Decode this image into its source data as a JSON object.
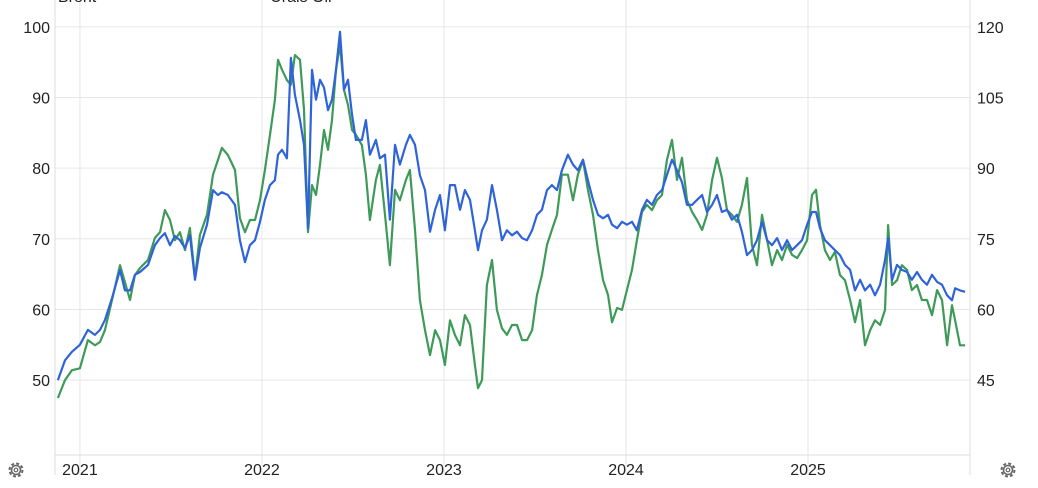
{
  "chart_data": {
    "type": "line",
    "x": [
      2020.879,
      2020.918,
      2020.956,
      2021.0,
      2021.044,
      2021.082,
      2021.11,
      2021.137,
      2021.176,
      2021.22,
      2021.247,
      2021.275,
      2021.302,
      2021.33,
      2021.374,
      2021.412,
      2021.44,
      2021.467,
      2021.495,
      2021.522,
      2021.549,
      2021.577,
      2021.604,
      2021.632,
      2021.659,
      2021.698,
      2021.731,
      2021.758,
      2021.78,
      2021.813,
      2021.852,
      2021.879,
      2021.907,
      2021.934,
      2021.962,
      2021.989,
      2022.016,
      2022.044,
      2022.071,
      2022.088,
      2022.11,
      2022.137,
      2022.159,
      2022.181,
      2022.209,
      2022.231,
      2022.253,
      2022.275,
      2022.297,
      2022.319,
      2022.341,
      2022.363,
      2022.385,
      2022.407,
      2022.429,
      2022.451,
      2022.473,
      2022.495,
      2022.516,
      2022.549,
      2022.571,
      2022.593,
      2022.626,
      2022.648,
      2022.676,
      2022.703,
      2022.731,
      2022.758,
      2022.791,
      2022.813,
      2022.841,
      2022.868,
      2022.896,
      2022.923,
      2022.951,
      2022.978,
      2023.005,
      2023.033,
      2023.06,
      2023.088,
      2023.115,
      2023.143,
      2023.17,
      2023.187,
      2023.209,
      2023.236,
      2023.264,
      2023.291,
      2023.319,
      2023.346,
      2023.374,
      2023.401,
      2023.429,
      2023.456,
      2023.484,
      2023.511,
      2023.538,
      2023.566,
      2023.593,
      2023.621,
      2023.648,
      2023.681,
      2023.709,
      2023.736,
      2023.764,
      2023.791,
      2023.819,
      2023.846,
      2023.874,
      2023.901,
      2023.923,
      2023.951,
      2023.978,
      2024.005,
      2024.033,
      2024.06,
      2024.088,
      2024.115,
      2024.143,
      2024.17,
      2024.198,
      2024.225,
      2024.253,
      2024.28,
      2024.308,
      2024.335,
      2024.363,
      2024.39,
      2024.418,
      2024.445,
      2024.473,
      2024.5,
      2024.527,
      2024.555,
      2024.582,
      2024.61,
      2024.637,
      2024.665,
      2024.692,
      2024.72,
      2024.747,
      2024.775,
      2024.802,
      2024.83,
      2024.857,
      2024.885,
      2024.912,
      2024.94,
      2024.967,
      2024.995,
      2025.022,
      2025.044,
      2025.066,
      2025.093,
      2025.121,
      2025.148,
      2025.176,
      2025.203,
      2025.231,
      2025.258,
      2025.286,
      2025.313,
      2025.341,
      2025.368,
      2025.396,
      2025.423,
      2025.44,
      2025.462,
      2025.489,
      2025.516,
      2025.544,
      2025.571,
      2025.599,
      2025.626,
      2025.654,
      2025.681,
      2025.709,
      2025.736,
      2025.764,
      2025.791,
      2025.808,
      2025.835,
      2025.863
    ],
    "series": [
      {
        "name": "Brent",
        "color": "#2f63d9",
        "axis": "y",
        "values": [
          50.0,
          52.8,
          54.0,
          55.0,
          57.1,
          56.4,
          57.1,
          58.5,
          61.6,
          65.6,
          62.7,
          62.7,
          64.9,
          65.3,
          66.3,
          69.1,
          70.1,
          70.8,
          69.1,
          70.4,
          69.8,
          68.7,
          70.5,
          64.2,
          68.7,
          72.0,
          76.9,
          76.2,
          76.6,
          76.2,
          74.8,
          69.8,
          66.7,
          69.1,
          69.8,
          72.4,
          75.5,
          77.6,
          78.3,
          81.9,
          82.6,
          81.4,
          95.6,
          90.4,
          86.8,
          83.3,
          71.5,
          93.9,
          89.7,
          92.5,
          91.4,
          88.2,
          89.7,
          93.9,
          99.3,
          91.1,
          92.5,
          87.5,
          84.0,
          84.0,
          86.8,
          81.9,
          84.0,
          81.4,
          81.9,
          72.7,
          83.3,
          80.5,
          83.3,
          84.7,
          83.3,
          79.0,
          76.9,
          71.0,
          74.1,
          76.2,
          71.2,
          77.6,
          77.6,
          74.1,
          76.9,
          75.5,
          71.2,
          68.4,
          71.2,
          72.7,
          77.6,
          74.1,
          69.8,
          71.2,
          70.5,
          71.0,
          70.1,
          69.8,
          71.2,
          73.4,
          74.1,
          76.9,
          77.6,
          76.9,
          79.7,
          81.9,
          80.5,
          79.7,
          81.2,
          78.3,
          75.5,
          73.4,
          72.9,
          73.4,
          72.0,
          71.5,
          72.4,
          72.0,
          72.4,
          71.2,
          74.1,
          75.5,
          74.8,
          76.2,
          76.9,
          79.0,
          81.2,
          79.7,
          78.0,
          74.8,
          74.8,
          75.5,
          76.2,
          73.8,
          74.8,
          76.2,
          73.8,
          74.1,
          72.7,
          73.4,
          71.0,
          67.7,
          68.4,
          69.8,
          72.4,
          69.8,
          69.1,
          70.1,
          68.4,
          69.8,
          68.4,
          69.1,
          69.8,
          72.0,
          73.8,
          73.8,
          71.5,
          69.8,
          69.1,
          68.4,
          67.7,
          66.3,
          65.6,
          62.7,
          64.2,
          62.7,
          63.5,
          62.0,
          63.5,
          67.0,
          70.1,
          64.2,
          66.3,
          65.6,
          65.3,
          64.2,
          65.3,
          64.2,
          63.5,
          64.9,
          63.9,
          63.5,
          62.0,
          61.3,
          63.0,
          62.7,
          62.5
        ]
      },
      {
        "name": "Urals Oil",
        "color": "#3e9a58",
        "axis": "y2",
        "values": [
          41.2,
          45.0,
          47.1,
          47.5,
          53.5,
          52.4,
          53.1,
          55.6,
          62.0,
          69.4,
          65.8,
          62.0,
          67.3,
          68.8,
          70.5,
          75.2,
          76.4,
          81.1,
          79.0,
          74.7,
          76.4,
          72.6,
          77.3,
          66.7,
          75.8,
          80.1,
          88.6,
          91.7,
          94.3,
          92.8,
          89.6,
          79.4,
          76.4,
          79.0,
          79.0,
          83.2,
          89.6,
          97.1,
          104.5,
          113.0,
          110.9,
          108.7,
          107.7,
          114.0,
          113.0,
          102.4,
          76.4,
          86.4,
          84.3,
          90.7,
          98.1,
          93.9,
          100.2,
          110.9,
          116.2,
          106.6,
          103.4,
          98.1,
          97.1,
          94.9,
          88.6,
          79.0,
          87.5,
          90.7,
          80.1,
          69.4,
          85.4,
          83.2,
          87.5,
          89.6,
          76.9,
          62.0,
          55.6,
          50.3,
          55.6,
          53.5,
          48.2,
          57.7,
          54.6,
          52.4,
          58.8,
          56.7,
          48.2,
          43.3,
          45.0,
          65.2,
          70.5,
          59.9,
          56.0,
          54.6,
          56.7,
          56.7,
          53.5,
          53.5,
          55.6,
          63.1,
          67.3,
          73.7,
          76.9,
          80.1,
          88.6,
          88.6,
          83.2,
          88.6,
          91.7,
          85.4,
          80.1,
          72.6,
          66.2,
          63.1,
          57.3,
          60.3,
          59.9,
          64.1,
          68.4,
          74.7,
          80.7,
          82.2,
          81.1,
          83.2,
          84.3,
          91.7,
          96.0,
          87.5,
          92.2,
          83.2,
          80.7,
          79.0,
          76.9,
          80.1,
          87.5,
          92.2,
          87.9,
          81.1,
          80.1,
          78.6,
          82.2,
          87.9,
          73.7,
          69.4,
          80.1,
          74.7,
          69.4,
          72.6,
          70.5,
          73.7,
          71.6,
          70.9,
          72.6,
          74.7,
          84.3,
          85.4,
          77.9,
          72.6,
          70.5,
          72.2,
          67.3,
          66.2,
          62.0,
          57.3,
          62.0,
          52.4,
          55.6,
          57.7,
          56.7,
          59.9,
          77.9,
          65.2,
          66.2,
          69.4,
          68.4,
          64.1,
          65.2,
          62.0,
          62.0,
          58.8,
          64.1,
          62.0,
          52.4,
          60.9,
          57.7,
          52.4,
          52.4
        ]
      }
    ],
    "xlim": [
      2020.863,
      2025.89
    ],
    "xticks": [
      2021,
      2022,
      2023,
      2024,
      2025
    ],
    "ylim": [
      39.4,
      103.8
    ],
    "yticks": [
      50,
      60,
      70,
      80,
      90,
      100
    ],
    "y2lim": [
      29.1,
      125.7
    ],
    "y2ticks": [
      45,
      60,
      75,
      90,
      105,
      120
    ],
    "grid": true
  }
}
